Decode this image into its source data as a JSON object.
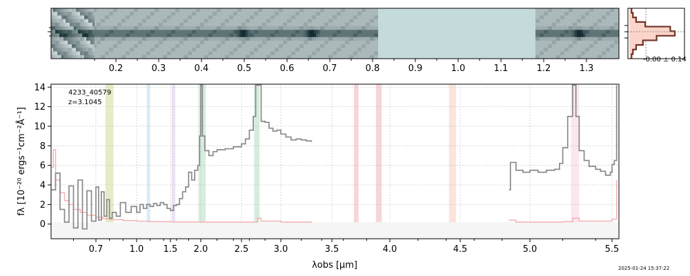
{
  "chart_data": [
    {
      "type": "heatmap",
      "panel": "2d-spectrum",
      "x_tick_labels": [
        "0.2",
        "0.3",
        "0.4",
        "0.5",
        "0.6",
        "0.7",
        "0.8",
        "0.9",
        "1.0",
        "1.1",
        "1.2",
        "1.3"
      ],
      "x_ticks": [
        0.2,
        0.3,
        0.4,
        0.5,
        0.6,
        0.7,
        0.8,
        0.9,
        1.0,
        1.1,
        1.2,
        1.3
      ],
      "masked_range": [
        0.81,
        1.18
      ],
      "emission_blobs": [
        0.495,
        0.655,
        1.28
      ],
      "colors": {
        "trace": "#26304f",
        "sky": "#c6dcdc",
        "mask": "#c4dadb"
      }
    },
    {
      "type": "line",
      "panel": "spatial-profile",
      "annotation": "-0.00 ± 0.14",
      "profile": [
        0.05,
        0.08,
        0.15,
        0.35,
        0.9,
        1.0,
        0.6,
        0.3,
        0.15,
        0.08,
        0.05
      ],
      "colors": {
        "fill": "#fbd5c9",
        "line": "#6e3426"
      }
    },
    {
      "type": "line",
      "panel": "1d-spectrum",
      "object_id": "4233_40579",
      "redshift_label": "z=3.1045",
      "xlabel": "λobs [μm]",
      "ylabel": "fλ [10⁻²⁰ ergs⁻¹cm⁻²Å⁻¹]",
      "ylim": [
        -1.5,
        14.3
      ],
      "y_ticks": [
        0,
        2,
        4,
        6,
        8,
        10,
        12,
        14
      ],
      "x_tick_labels": [
        "0.7",
        "1.0",
        "1.5",
        "2.0",
        "2.5",
        "3.0",
        "3.5",
        "4.0",
        "4.5",
        "5.0",
        "5.5"
      ],
      "x_ticks": [
        0.7,
        1.0,
        1.5,
        2.0,
        2.5,
        3.0,
        3.5,
        4.0,
        4.5,
        5.0,
        5.5
      ],
      "grid": true,
      "line_bands": [
        {
          "x": [
            0.77,
            0.83
          ],
          "color": "#d9e6b0"
        },
        {
          "x": [
            1.15,
            1.2
          ],
          "color": "#c9e3f5"
        },
        {
          "x": [
            1.52,
            1.58
          ],
          "color": "#e1d5ec"
        },
        {
          "x": [
            1.96,
            2.06
          ],
          "color": "#c5e6cf"
        },
        {
          "x": [
            2.66,
            2.73
          ],
          "color": "#c5e6cf"
        },
        {
          "x": [
            3.69,
            3.73
          ],
          "color": "#f3c5c8"
        },
        {
          "x": [
            3.88,
            3.93
          ],
          "color": "#f3c5c8"
        },
        {
          "x": [
            4.42,
            4.47
          ],
          "color": "#fad9cc"
        },
        {
          "x": [
            5.25,
            5.3
          ],
          "color": "#f9dde8"
        }
      ],
      "series": [
        {
          "role": "flux",
          "color": "#888888",
          "segments": [
            [
              [
                0.5,
                3.5
              ],
              [
                0.52,
                5.2
              ],
              [
                0.54,
                1.5
              ],
              [
                0.56,
                0.2
              ],
              [
                0.58,
                3.9
              ],
              [
                0.6,
                -0.4
              ],
              [
                0.62,
                4.5
              ],
              [
                0.64,
                -0.5
              ],
              [
                0.66,
                3.4
              ],
              [
                0.68,
                0.3
              ],
              [
                0.7,
                3.8
              ],
              [
                0.72,
                0.4
              ],
              [
                0.74,
                3.3
              ],
              [
                0.76,
                0.8
              ],
              [
                0.78,
                2.5
              ],
              [
                0.8,
                0.6
              ],
              [
                0.82,
                1.2
              ],
              [
                0.85,
                0.8
              ],
              [
                0.88,
                2.2
              ],
              [
                0.92,
                1.2
              ],
              [
                0.96,
                1.8
              ],
              [
                1.0,
                1.2
              ],
              [
                1.05,
                2.0
              ],
              [
                1.1,
                1.6
              ],
              [
                1.15,
                2.0
              ],
              [
                1.2,
                1.8
              ],
              [
                1.25,
                2.1
              ],
              [
                1.3,
                1.9
              ],
              [
                1.35,
                2.2
              ],
              [
                1.4,
                2.0
              ],
              [
                1.45,
                1.6
              ],
              [
                1.5,
                1.4
              ],
              [
                1.55,
                1.9
              ],
              [
                1.6,
                2.0
              ],
              [
                1.65,
                2.6
              ],
              [
                1.7,
                3.3
              ],
              [
                1.75,
                3.8
              ],
              [
                1.8,
                5.3
              ],
              [
                1.85,
                4.5
              ],
              [
                1.9,
                5.5
              ],
              [
                1.95,
                6.0
              ],
              [
                1.98,
                9.0
              ],
              [
                2.0,
                14.2
              ],
              [
                2.02,
                9.0
              ],
              [
                2.05,
                7.5
              ],
              [
                2.1,
                7.0
              ],
              [
                2.15,
                7.4
              ],
              [
                2.2,
                7.6
              ],
              [
                2.3,
                7.7
              ],
              [
                2.4,
                7.9
              ],
              [
                2.5,
                8.2
              ],
              [
                2.55,
                8.7
              ],
              [
                2.6,
                9.6
              ],
              [
                2.65,
                11.0
              ],
              [
                2.68,
                14.2
              ],
              [
                2.72,
                14.2
              ],
              [
                2.75,
                10.5
              ],
              [
                2.8,
                10.4
              ],
              [
                2.85,
                9.8
              ],
              [
                2.9,
                9.5
              ],
              [
                2.95,
                9.6
              ],
              [
                3.0,
                9.2
              ],
              [
                3.05,
                8.9
              ],
              [
                3.1,
                8.6
              ],
              [
                3.15,
                8.7
              ],
              [
                3.2,
                8.6
              ],
              [
                3.25,
                8.5
              ],
              [
                3.3,
                8.4
              ]
            ],
            [
              [
                4.85,
                3.5
              ],
              [
                4.86,
                6.3
              ],
              [
                4.9,
                5.5
              ],
              [
                4.95,
                5.3
              ],
              [
                5.0,
                5.5
              ],
              [
                5.05,
                5.3
              ],
              [
                5.1,
                5.5
              ],
              [
                5.15,
                5.6
              ],
              [
                5.18,
                6.2
              ],
              [
                5.2,
                7.8
              ],
              [
                5.23,
                11.0
              ],
              [
                5.26,
                14.2
              ],
              [
                5.28,
                11.0
              ],
              [
                5.3,
                7.5
              ],
              [
                5.33,
                6.5
              ],
              [
                5.36,
                5.9
              ],
              [
                5.4,
                5.6
              ],
              [
                5.43,
                5.4
              ],
              [
                5.46,
                5.0
              ],
              [
                5.49,
                5.3
              ],
              [
                5.5,
                6.1
              ],
              [
                5.51,
                6.5
              ],
              [
                5.52,
                14.2
              ]
            ]
          ]
        },
        {
          "role": "error",
          "color": "#f4b1b1",
          "segments": [
            [
              [
                0.5,
                5.8
              ],
              [
                0.51,
                7.6
              ],
              [
                0.52,
                4.5
              ],
              [
                0.54,
                3.2
              ],
              [
                0.56,
                2.4
              ],
              [
                0.58,
                2.0
              ],
              [
                0.6,
                1.5
              ],
              [
                0.63,
                1.2
              ],
              [
                0.66,
                0.9
              ],
              [
                0.7,
                0.7
              ],
              [
                0.75,
                0.55
              ],
              [
                0.8,
                0.45
              ],
              [
                0.9,
                0.35
              ],
              [
                1.0,
                0.3
              ],
              [
                1.2,
                0.25
              ],
              [
                1.5,
                0.22
              ],
              [
                2.0,
                0.2
              ],
              [
                2.6,
                0.2
              ],
              [
                2.7,
                0.6
              ],
              [
                2.75,
                0.3
              ],
              [
                3.0,
                0.2
              ],
              [
                3.3,
                0.22
              ]
            ],
            [
              [
                4.85,
                0.4
              ],
              [
                4.9,
                0.2
              ],
              [
                5.0,
                0.2
              ],
              [
                5.2,
                0.25
              ],
              [
                5.26,
                0.6
              ],
              [
                5.3,
                0.3
              ],
              [
                5.45,
                0.3
              ],
              [
                5.5,
                0.5
              ],
              [
                5.52,
                4.5
              ]
            ]
          ]
        }
      ]
    }
  ],
  "footer": {
    "timestamp": "2025-01-24 15:37:22"
  }
}
